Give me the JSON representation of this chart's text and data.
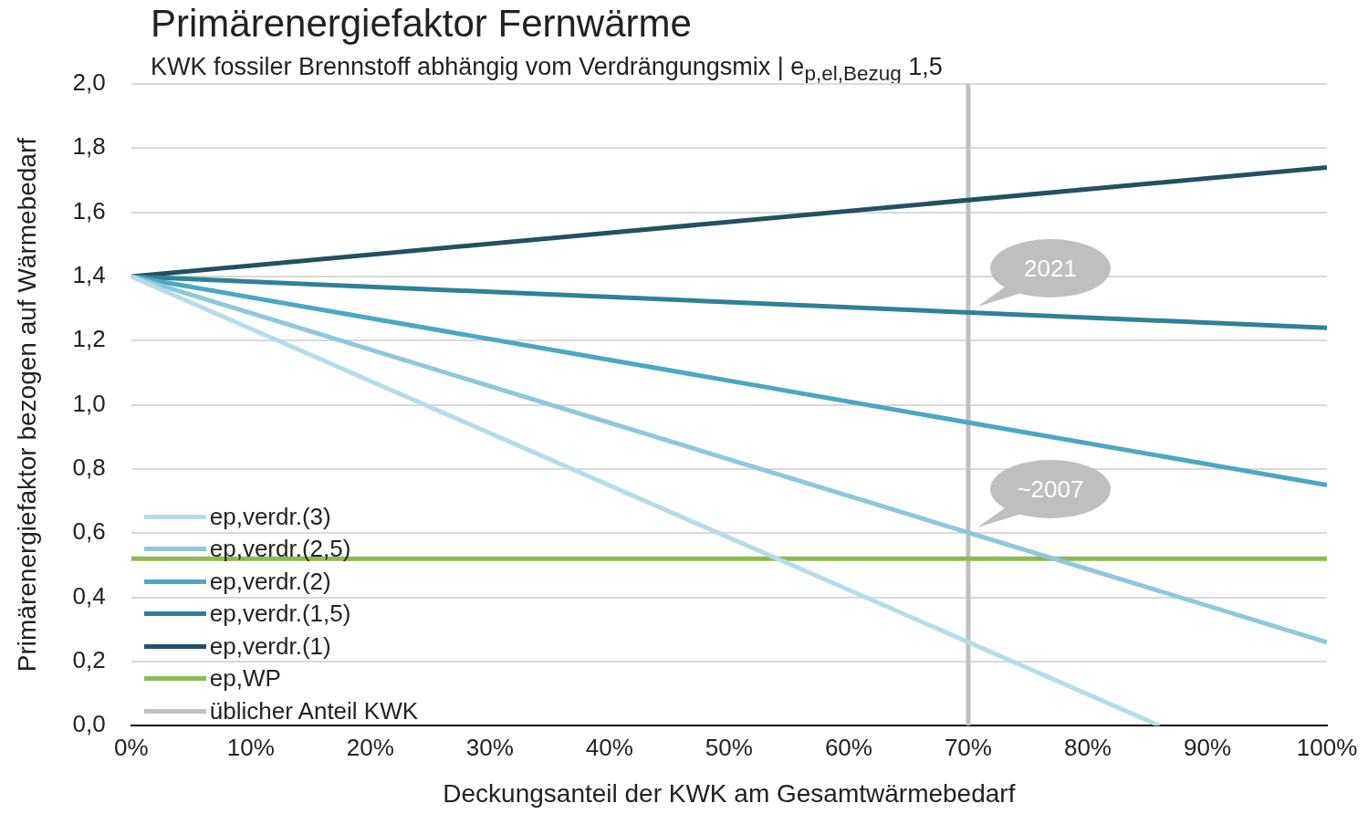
{
  "chart_data": {
    "type": "line",
    "title": "Primärenergiefaktor Fernwärme",
    "subtitle": "KWK fossiler Brennstoff abhängig vom Verdrängungsmix | e$_{p,el,Bezug}$ 1,5",
    "xlabel": "Deckungsanteil der KWK am Gesamtwärmebedarf",
    "ylabel": "Primärenergiefaktor bezogen auf Wärmebedarf",
    "x": [
      0,
      100
    ],
    "series": [
      {
        "name": "ep,verdr.(3)",
        "color": "#b5dde8",
        "x": [
          0,
          86
        ],
        "values": [
          1.4,
          0
        ]
      },
      {
        "name": "ep,verdr.(2,5)",
        "color": "#8ec8da",
        "values": [
          1.4,
          0.26
        ]
      },
      {
        "name": "ep,verdr.(2)",
        "color": "#4aa8c4",
        "values": [
          1.4,
          0.75
        ]
      },
      {
        "name": "ep,verdr.(1,5)",
        "color": "#2f8199",
        "values": [
          1.4,
          1.24
        ]
      },
      {
        "name": "ep,verdr.(1)",
        "color": "#22515f",
        "values": [
          1.4,
          1.74
        ]
      },
      {
        "name": "ep,WP",
        "color": "#8fb856",
        "values": [
          0.52,
          0.52
        ]
      },
      {
        "name": "üblicher Anteil KWK",
        "color": "#c0c0c0",
        "x": [
          70,
          70
        ],
        "values": [
          0,
          2
        ]
      }
    ],
    "annotations": [
      {
        "text": "2021",
        "x": 70,
        "y": 1.29
      },
      {
        "text": "~2007",
        "x": 70,
        "y": 0.6
      }
    ],
    "xlim": [
      0,
      100
    ],
    "xticks": [
      {
        "value": 0,
        "label": "0%"
      },
      {
        "value": 10,
        "label": "10%"
      },
      {
        "value": 20,
        "label": "20%"
      },
      {
        "value": 30,
        "label": "30%"
      },
      {
        "value": 40,
        "label": "40%"
      },
      {
        "value": 50,
        "label": "50%"
      },
      {
        "value": 60,
        "label": "60%"
      },
      {
        "value": 70,
        "label": "70%"
      },
      {
        "value": 80,
        "label": "80%"
      },
      {
        "value": 90,
        "label": "90%"
      },
      {
        "value": 100,
        "label": "100%"
      }
    ],
    "ylim": [
      0,
      2
    ],
    "yticks": [
      {
        "value": 0,
        "label": "0,0"
      },
      {
        "value": 0.2,
        "label": "0,2"
      },
      {
        "value": 0.4,
        "label": "0,4"
      },
      {
        "value": 0.6,
        "label": "0,6"
      },
      {
        "value": 0.8,
        "label": "0,8"
      },
      {
        "value": 1,
        "label": "1,0"
      },
      {
        "value": 1.2,
        "label": "1,2"
      },
      {
        "value": 1.4,
        "label": "1,4"
      },
      {
        "value": 1.6,
        "label": "1,6"
      },
      {
        "value": 1.8,
        "label": "1,8"
      },
      {
        "value": 2,
        "label": "2,0"
      }
    ],
    "grid": "y",
    "legend": "bottom left",
    "marker": "none",
    "line_style": "solid"
  }
}
